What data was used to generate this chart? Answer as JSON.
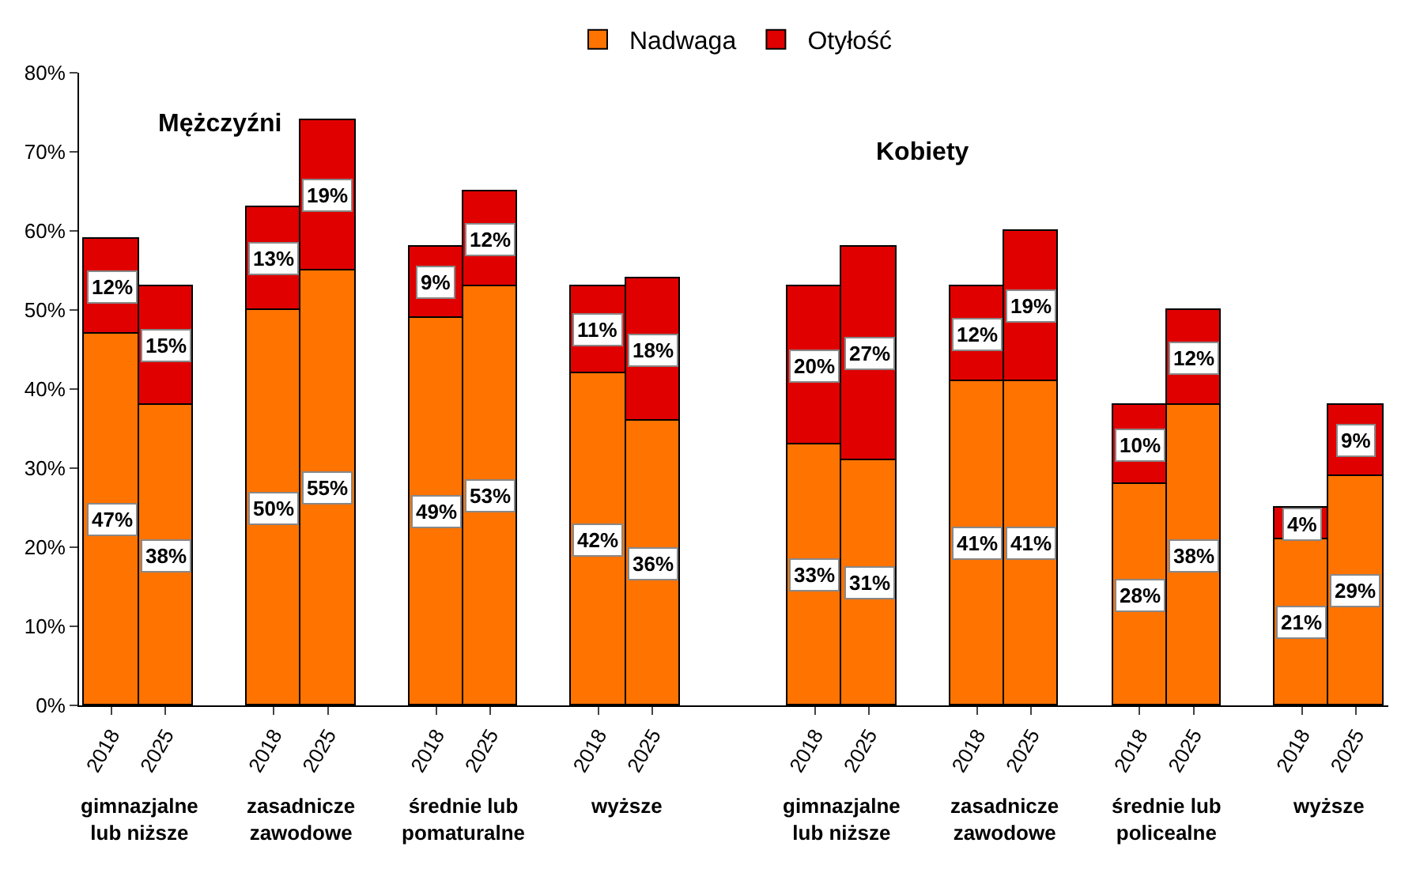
{
  "chart_data": {
    "type": "bar",
    "stacked": true,
    "categories": [
      "2018",
      "2025",
      null,
      "2018",
      "2025",
      null,
      "2018",
      "2025",
      null,
      "2018",
      "2025",
      null,
      null,
      "2018",
      "2025",
      null,
      "2018",
      "2025",
      null,
      "2018",
      "2025",
      null,
      "2018",
      "2025"
    ],
    "series": [
      {
        "name": "Nadwaga",
        "color": "#ff7300",
        "values": [
          47,
          38,
          null,
          50,
          55,
          null,
          49,
          53,
          null,
          42,
          36,
          null,
          null,
          33,
          31,
          null,
          41,
          41,
          null,
          28,
          38,
          null,
          21,
          29
        ],
        "value_labels": [
          "47%",
          "38%",
          null,
          "50%",
          "55%",
          null,
          "49%",
          "53%",
          null,
          "42%",
          "36%",
          null,
          null,
          "33%",
          "31%",
          null,
          "41%",
          "41%",
          null,
          "28%",
          "38%",
          null,
          "21%",
          "29%"
        ]
      },
      {
        "name": "Otyłość",
        "color": "#e00000",
        "values": [
          12,
          15,
          null,
          13,
          19,
          null,
          9,
          12,
          null,
          11,
          18,
          null,
          null,
          20,
          27,
          null,
          12,
          19,
          null,
          10,
          12,
          null,
          4,
          9
        ],
        "value_labels": [
          "12%",
          "15%",
          null,
          "13%",
          "19%",
          null,
          "9%",
          "12%",
          null,
          "11%",
          "18%",
          null,
          null,
          "20%",
          "27%",
          null,
          "12%",
          "19%",
          null,
          "10%",
          "12%",
          null,
          "4%",
          "9%"
        ]
      }
    ],
    "ylim": [
      0,
      80
    ],
    "yticks": [
      {
        "value": 0,
        "label": "0%"
      },
      {
        "value": 10,
        "label": "10%"
      },
      {
        "value": 20,
        "label": "20%"
      },
      {
        "value": 30,
        "label": "30%"
      },
      {
        "value": 40,
        "label": "40%"
      },
      {
        "value": 50,
        "label": "50%"
      },
      {
        "value": 60,
        "label": "60%"
      },
      {
        "value": 70,
        "label": "70%"
      },
      {
        "value": 80,
        "label": "80%"
      }
    ],
    "grid": false,
    "legend": "top",
    "annotations": [
      "gimnazjalne\nlub niższe",
      "zasadnicze\nzawodowe",
      "średnie lub\npomaturalne",
      "wyższe",
      "gimnazjalne\nlub niższe",
      "zasadnicze\nzawodowe",
      "średnie lub\npolicealne",
      "wyższe",
      "Mężczyźni",
      "Kobiety"
    ]
  }
}
